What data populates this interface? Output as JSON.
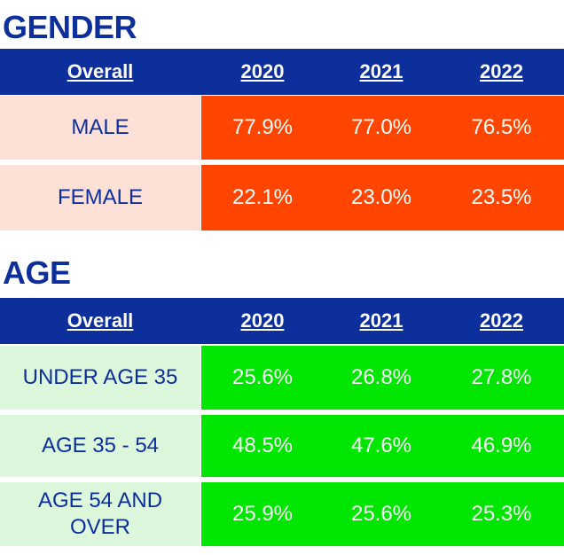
{
  "gender": {
    "title": "GENDER",
    "headers": [
      "Overall",
      "2020",
      "2021",
      "2022"
    ],
    "rows": [
      {
        "label": "MALE",
        "values": [
          "77.9%",
          "77.0%",
          "76.5%"
        ]
      },
      {
        "label": "FEMALE",
        "values": [
          "22.1%",
          "23.0%",
          "23.5%"
        ]
      }
    ]
  },
  "age": {
    "title": "AGE",
    "headers": [
      "Overall",
      "2020",
      "2021",
      "2022"
    ],
    "rows": [
      {
        "label": "UNDER AGE 35",
        "values": [
          "25.6%",
          "26.8%",
          "27.8%"
        ]
      },
      {
        "label": "AGE 35 - 54",
        "values": [
          "48.5%",
          "47.6%",
          "46.9%"
        ]
      },
      {
        "label": "AGE 54 AND OVER",
        "values": [
          "25.9%",
          "25.6%",
          "25.3%"
        ]
      }
    ]
  },
  "colors": {
    "header_blue": "#0d2f9c",
    "gender_label_bg": "#fde0d6",
    "gender_value_bg": "#ff4500",
    "age_label_bg": "#ddf7dd",
    "age_value_bg": "#00e600"
  }
}
